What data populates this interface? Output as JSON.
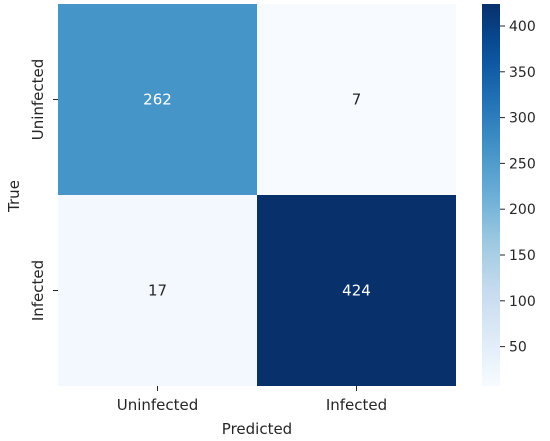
{
  "chart_data": {
    "type": "heatmap",
    "title": "",
    "xlabel": "Predicted",
    "ylabel": "True",
    "x_categories": [
      "Uninfected",
      "Infected"
    ],
    "y_categories": [
      "Uninfected",
      "Infected"
    ],
    "values": [
      [
        262,
        7
      ],
      [
        17,
        424
      ]
    ],
    "colormap": "Blues",
    "vmin": 7,
    "vmax": 424,
    "colorbar_ticks": [
      50,
      100,
      150,
      200,
      250,
      300,
      350,
      400
    ]
  },
  "colors": {
    "cmap_low": "#f7fbff",
    "cmap_high": "#08306b",
    "light_text": "#ffffff",
    "dark_text": "#262626"
  }
}
